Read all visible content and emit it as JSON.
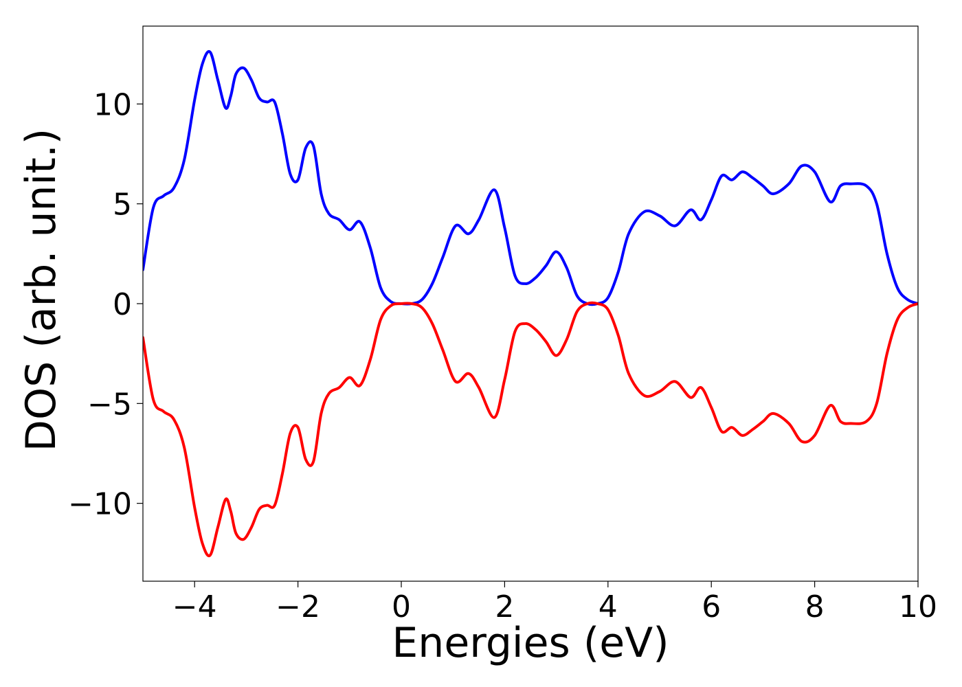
{
  "chart_data": {
    "type": "line",
    "title": "",
    "xlabel": "Energies (eV)",
    "ylabel": "DOS (arb. unit.)",
    "xlim": [
      -5,
      10
    ],
    "ylim": [
      -13.9,
      13.9
    ],
    "grid": false,
    "legend": "none",
    "x_ticks": [
      {
        "value": -4,
        "label": "−4"
      },
      {
        "value": -2,
        "label": "−2"
      },
      {
        "value": 0,
        "label": "0"
      },
      {
        "value": 2,
        "label": "2"
      },
      {
        "value": 4,
        "label": "4"
      },
      {
        "value": 6,
        "label": "6"
      },
      {
        "value": 8,
        "label": "8"
      },
      {
        "value": 10,
        "label": "10"
      }
    ],
    "y_ticks": [
      {
        "value": -10,
        "label": "−10"
      },
      {
        "value": -5,
        "label": "−5"
      },
      {
        "value": 0,
        "label": "0"
      },
      {
        "value": 5,
        "label": "5"
      },
      {
        "value": 10,
        "label": "10"
      }
    ],
    "series": [
      {
        "color": "#0000ff",
        "x": [
          -5.0,
          -4.8,
          -4.6,
          -4.4,
          -4.2,
          -4.0,
          -3.85,
          -3.7,
          -3.55,
          -3.4,
          -3.3,
          -3.2,
          -3.05,
          -2.9,
          -2.75,
          -2.6,
          -2.45,
          -2.3,
          -2.15,
          -2.0,
          -1.85,
          -1.7,
          -1.55,
          -1.4,
          -1.2,
          -1.0,
          -0.8,
          -0.6,
          -0.4,
          -0.2,
          0.0,
          0.2,
          0.4,
          0.6,
          0.8,
          1.05,
          1.3,
          1.5,
          1.8,
          2.0,
          2.2,
          2.4,
          2.6,
          2.8,
          3.0,
          3.2,
          3.4,
          3.6,
          3.8,
          4.0,
          4.2,
          4.4,
          4.7,
          5.0,
          5.3,
          5.6,
          5.8,
          6.0,
          6.2,
          6.4,
          6.6,
          6.8,
          7.0,
          7.2,
          7.5,
          7.75,
          8.0,
          8.3,
          8.5,
          8.7,
          9.0,
          9.2,
          9.4,
          9.6,
          9.8,
          10.0
        ],
        "y": [
          1.7,
          4.8,
          5.4,
          5.8,
          7.2,
          10.2,
          12.0,
          12.6,
          11.2,
          9.8,
          10.4,
          11.5,
          11.8,
          11.2,
          10.3,
          10.1,
          10.1,
          8.5,
          6.5,
          6.2,
          7.8,
          7.9,
          5.5,
          4.5,
          4.2,
          3.7,
          4.1,
          2.8,
          0.8,
          0.1,
          0.0,
          0.0,
          0.2,
          1.0,
          2.3,
          3.9,
          3.5,
          4.2,
          5.7,
          3.8,
          1.4,
          1.0,
          1.3,
          1.9,
          2.6,
          1.8,
          0.4,
          0.0,
          0.0,
          0.3,
          1.6,
          3.5,
          4.6,
          4.4,
          3.9,
          4.7,
          4.2,
          5.2,
          6.4,
          6.2,
          6.6,
          6.3,
          5.9,
          5.5,
          6.0,
          6.9,
          6.6,
          5.1,
          5.9,
          6.0,
          5.9,
          5.0,
          2.5,
          0.8,
          0.2,
          0.0
        ]
      },
      {
        "color": "#ff0000",
        "x": [
          -5.0,
          -4.8,
          -4.6,
          -4.4,
          -4.2,
          -4.0,
          -3.85,
          -3.7,
          -3.55,
          -3.4,
          -3.3,
          -3.2,
          -3.05,
          -2.9,
          -2.75,
          -2.6,
          -2.45,
          -2.3,
          -2.15,
          -2.0,
          -1.85,
          -1.7,
          -1.55,
          -1.4,
          -1.2,
          -1.0,
          -0.8,
          -0.6,
          -0.4,
          -0.2,
          0.0,
          0.2,
          0.4,
          0.6,
          0.8,
          1.05,
          1.3,
          1.5,
          1.8,
          2.0,
          2.2,
          2.4,
          2.6,
          2.8,
          3.0,
          3.2,
          3.4,
          3.6,
          3.8,
          4.0,
          4.2,
          4.4,
          4.7,
          5.0,
          5.3,
          5.6,
          5.8,
          6.0,
          6.2,
          6.4,
          6.6,
          6.8,
          7.0,
          7.2,
          7.5,
          7.75,
          8.0,
          8.3,
          8.5,
          8.7,
          9.0,
          9.2,
          9.4,
          9.6,
          9.8,
          10.0
        ],
        "y": [
          -1.7,
          -4.8,
          -5.4,
          -5.8,
          -7.2,
          -10.2,
          -12.0,
          -12.6,
          -11.2,
          -9.8,
          -10.4,
          -11.5,
          -11.8,
          -11.2,
          -10.3,
          -10.1,
          -10.1,
          -8.5,
          -6.5,
          -6.2,
          -7.8,
          -7.9,
          -5.5,
          -4.5,
          -4.2,
          -3.7,
          -4.1,
          -2.8,
          -0.8,
          -0.1,
          0.0,
          0.0,
          -0.2,
          -1.0,
          -2.3,
          -3.9,
          -3.5,
          -4.2,
          -5.7,
          -3.8,
          -1.4,
          -1.0,
          -1.3,
          -1.9,
          -2.6,
          -1.8,
          -0.4,
          0.0,
          0.0,
          -0.3,
          -1.6,
          -3.5,
          -4.6,
          -4.4,
          -3.9,
          -4.7,
          -4.2,
          -5.2,
          -6.4,
          -6.2,
          -6.6,
          -6.3,
          -5.9,
          -5.5,
          -6.0,
          -6.9,
          -6.6,
          -5.1,
          -5.9,
          -6.0,
          -5.9,
          -5.0,
          -2.5,
          -0.8,
          -0.2,
          0.0
        ]
      }
    ]
  }
}
